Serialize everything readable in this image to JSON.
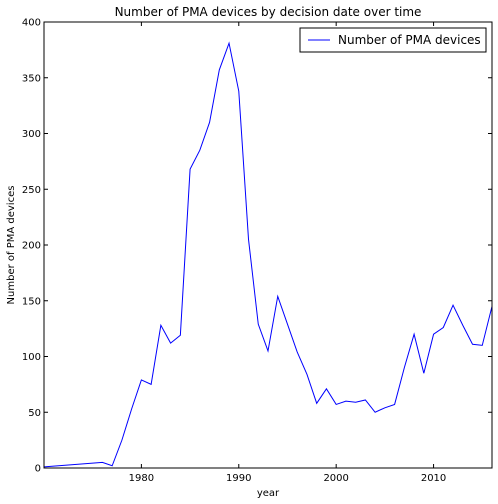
{
  "chart_data": {
    "type": "line",
    "title": "Number of PMA devices by decision date over time",
    "xlabel": "year",
    "ylabel": "Number of PMA devices",
    "xlim": [
      1970,
      2016
    ],
    "ylim": [
      0,
      400
    ],
    "xticks": [
      1980,
      1990,
      2000,
      2010
    ],
    "yticks": [
      0,
      50,
      100,
      150,
      200,
      250,
      300,
      350,
      400
    ],
    "grid": false,
    "legend_position": "top-right",
    "series": [
      {
        "name": "Number of PMA devices",
        "color": "#0000ff",
        "x": [
          1970,
          1976,
          1977,
          1978,
          1979,
          1980,
          1981,
          1982,
          1983,
          1984,
          1985,
          1986,
          1987,
          1988,
          1989,
          1990,
          1991,
          1992,
          1993,
          1994,
          1995,
          1996,
          1997,
          1998,
          1999,
          2000,
          2001,
          2002,
          2003,
          2004,
          2005,
          2006,
          2007,
          2008,
          2009,
          2010,
          2011,
          2012,
          2013,
          2014,
          2015,
          2016
        ],
        "y": [
          1,
          5,
          2,
          25,
          53,
          79,
          75,
          128,
          112,
          119,
          268,
          285,
          310,
          357,
          381,
          338,
          205,
          129,
          105,
          154,
          129,
          104,
          84,
          58,
          71,
          57,
          60,
          59,
          61,
          50,
          54,
          57,
          90,
          120,
          85,
          120,
          126,
          146,
          128,
          111,
          110,
          145
        ]
      }
    ]
  }
}
